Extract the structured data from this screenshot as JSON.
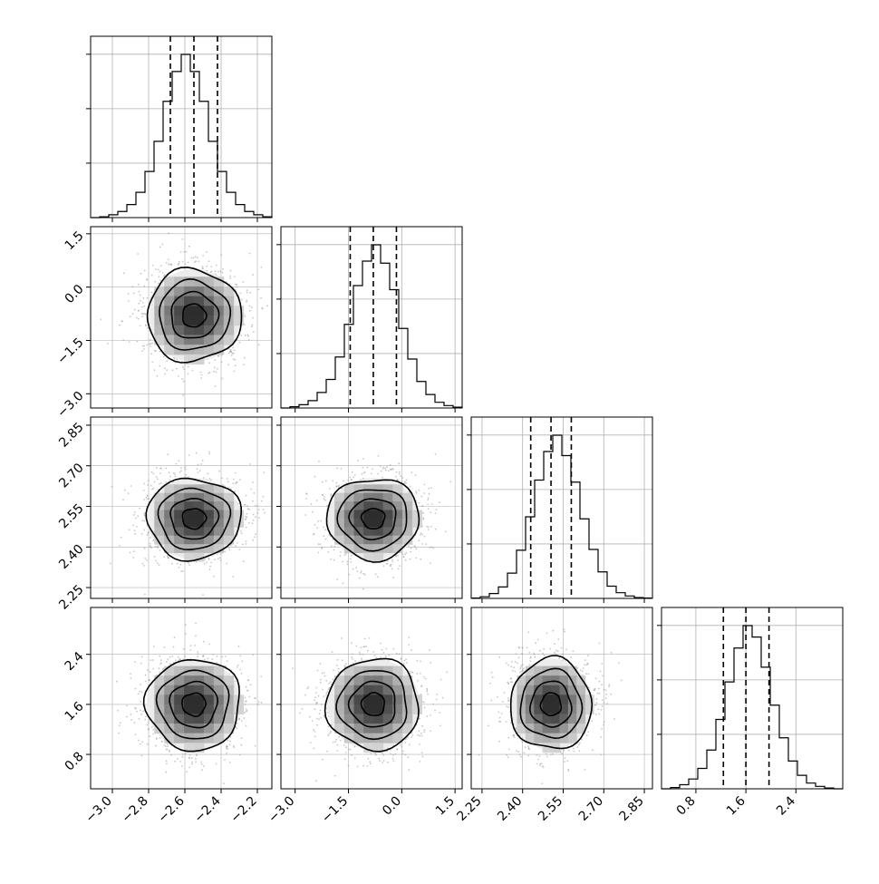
{
  "chart_data": {
    "type": "corner",
    "parameters": [
      {
        "range": [
          -3.12,
          -2.12
        ],
        "ticks": [
          -3.0,
          -2.8,
          -2.6,
          -2.4,
          -2.2
        ],
        "tick_labels": [
          "−3.0",
          "−2.8",
          "−2.6",
          "−2.4",
          "−2.2"
        ],
        "median": -2.55,
        "quantiles_16_84": [
          -2.68,
          -2.42
        ],
        "histogram": {
          "bin_edges": [
            -3.12,
            -3.07,
            -3.02,
            -2.97,
            -2.92,
            -2.87,
            -2.82,
            -2.77,
            -2.72,
            -2.67,
            -2.62,
            -2.57,
            -2.52,
            -2.47,
            -2.42,
            -2.37,
            -2.32,
            -2.27,
            -2.22,
            -2.17,
            -2.12
          ],
          "counts": [
            0,
            2,
            7,
            15,
            32,
            62,
            113,
            187,
            285,
            358,
            400,
            358,
            285,
            187,
            113,
            62,
            32,
            15,
            7,
            2
          ]
        }
      },
      {
        "range": [
          -3.4,
          1.7
        ],
        "ticks": [
          -3.0,
          -1.5,
          0.0,
          1.5
        ],
        "tick_labels": [
          "−3.0",
          "−1.5",
          "0.0",
          "1.5"
        ],
        "median": -0.8,
        "quantiles_16_84": [
          -1.45,
          -0.15
        ],
        "histogram": {
          "bin_edges": [
            -3.4,
            -3.145,
            -2.89,
            -2.635,
            -2.38,
            -2.125,
            -1.87,
            -1.615,
            -1.36,
            -1.105,
            -0.85,
            -0.595,
            -0.34,
            -0.085,
            0.17,
            0.425,
            0.68,
            0.935,
            1.19,
            1.445,
            1.7
          ],
          "counts": [
            0,
            3,
            8,
            18,
            38,
            70,
            125,
            205,
            300,
            360,
            400,
            355,
            290,
            195,
            120,
            65,
            33,
            14,
            6,
            2
          ]
        }
      },
      {
        "range": [
          2.21,
          2.88
        ],
        "ticks": [
          2.25,
          2.4,
          2.55,
          2.7,
          2.85
        ],
        "tick_labels": [
          "2.25",
          "2.40",
          "2.55",
          "2.70",
          "2.85"
        ],
        "median": 2.505,
        "quantiles_16_84": [
          2.43,
          2.58
        ],
        "histogram": {
          "bin_edges": [
            2.21,
            2.2435,
            2.277,
            2.3105,
            2.344,
            2.3775,
            2.411,
            2.4445,
            2.478,
            2.5115,
            2.545,
            2.5785,
            2.612,
            2.6455,
            2.679,
            2.7125,
            2.746,
            2.7795,
            2.813,
            2.8465,
            2.88
          ],
          "counts": [
            1,
            4,
            12,
            28,
            62,
            118,
            200,
            290,
            360,
            400,
            350,
            285,
            195,
            120,
            65,
            30,
            14,
            6,
            2,
            1
          ]
        }
      },
      {
        "range": [
          0.25,
          3.15
        ],
        "ticks": [
          0.8,
          1.6,
          2.4
        ],
        "tick_labels": [
          "0.8",
          "1.6",
          "2.4"
        ],
        "median": 1.6,
        "quantiles_16_84": [
          1.24,
          1.97
        ],
        "histogram": {
          "bin_edges": [
            0.25,
            0.395,
            0.54,
            0.685,
            0.83,
            0.975,
            1.12,
            1.265,
            1.41,
            1.555,
            1.7,
            1.845,
            1.99,
            2.135,
            2.28,
            2.425,
            2.57,
            2.715,
            2.86,
            3.005,
            3.15
          ],
          "counts": [
            0,
            3,
            10,
            24,
            50,
            95,
            170,
            262,
            345,
            400,
            372,
            298,
            205,
            125,
            68,
            33,
            14,
            6,
            2,
            0
          ]
        }
      }
    ],
    "contour_levels": [
      0.5,
      1.0,
      1.5,
      2.0
    ],
    "grid": true,
    "colors": {
      "histogram": "#000000",
      "quantile_lines": "#000000",
      "contours": "#000000",
      "scatter_points": "#9a9a9a",
      "density_cells": "#000000",
      "grid": "#b0b0b0"
    }
  }
}
